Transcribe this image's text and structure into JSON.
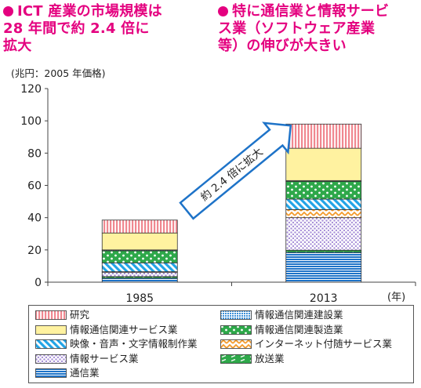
{
  "headlines": {
    "left": "ICT 産業の市場規模は\n28 年間で約 2.4 倍に\n拡大",
    "right": "特に通信業と情報サービ\nス業（ソフトウェア産業\n等）の伸びが大きい"
  },
  "chart_data": {
    "type": "bar",
    "stacked": true,
    "unit_label": "(兆円：2005 年価格)",
    "categories": [
      "1985",
      "2013"
    ],
    "x_unit_label": "(年)",
    "ylim": [
      0,
      120
    ],
    "yticks": [
      0,
      20,
      40,
      60,
      80,
      100,
      120
    ],
    "grid": false,
    "legend_placement": "bottom",
    "annotation": "約 2.4 倍に拡大",
    "series": [
      {
        "name": "通信業",
        "values": [
          2.5,
          18.5
        ],
        "color": "#1e73c8",
        "pattern": "hlines"
      },
      {
        "name": "放送業",
        "values": [
          1.0,
          1.3
        ],
        "color": "#2ea84a",
        "pattern": "dashes"
      },
      {
        "name": "情報サービス業",
        "values": [
          2.5,
          20.2
        ],
        "color": "#a890d8",
        "pattern": "dots"
      },
      {
        "name": "インターネット付随サービス業",
        "values": [
          0.5,
          5.0
        ],
        "color": "#f39a2a",
        "pattern": "chevron"
      },
      {
        "name": "映像・音声・文字情報制作業",
        "values": [
          5.5,
          6.5
        ],
        "color": "#22a4e6",
        "pattern": "diag"
      },
      {
        "name": "情報通信関連製造業",
        "values": [
          7.5,
          11.0
        ],
        "color": "#2ea84a",
        "pattern": "polka"
      },
      {
        "name": "情報通信関連建設業",
        "values": [
          0.5,
          0.5
        ],
        "color": "#3a8fd8",
        "pattern": "grid"
      },
      {
        "name": "情報通信関連サービス業",
        "values": [
          10.5,
          20.0
        ],
        "color": "#fff2a0",
        "pattern": "solid"
      },
      {
        "name": "研究",
        "values": [
          8.0,
          15.0
        ],
        "color": "#f08890",
        "pattern": "vlines"
      }
    ],
    "legend_order": [
      "研究",
      "情報通信関連建設業",
      "情報通信関連サービス業",
      "情報通信関連製造業",
      "映像・音声・文字情報制作業",
      "インターネット付随サービス業",
      "情報サービス業",
      "放送業",
      "通信業"
    ]
  }
}
